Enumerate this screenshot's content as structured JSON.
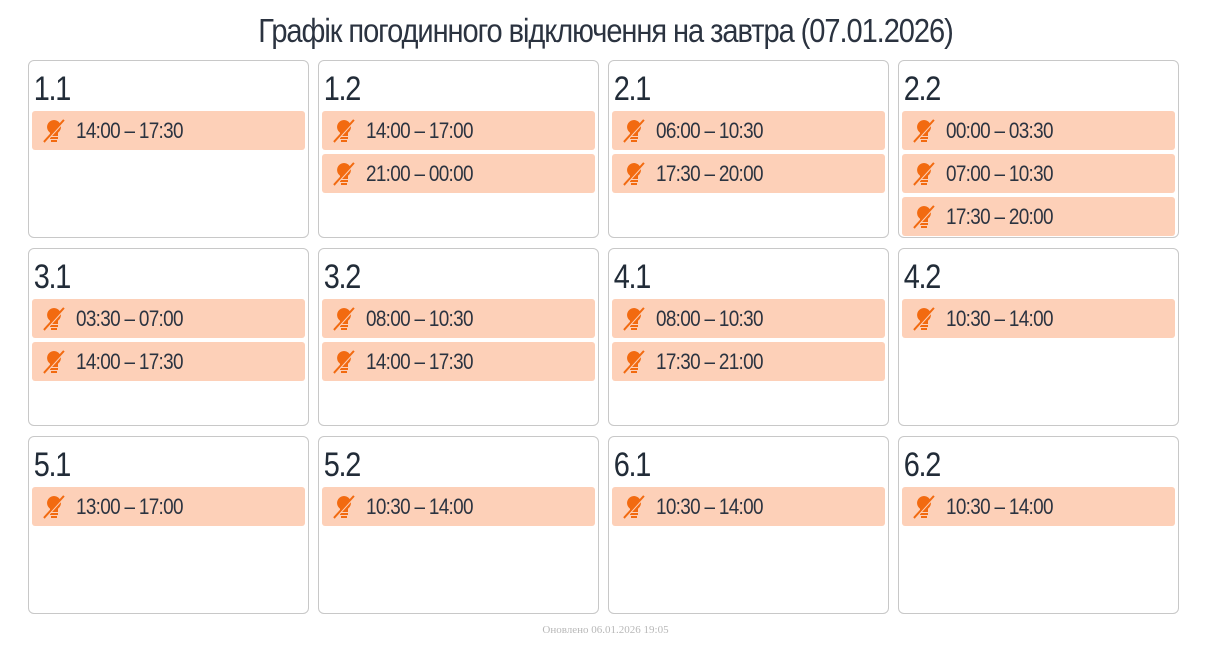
{
  "title": "Графік погодинного відключення на завтра (07.01.2026)",
  "icon": "power-off-bulb-icon",
  "colors": {
    "accent": "#f26a10",
    "item_bg": "#fdd0b8"
  },
  "groups": [
    {
      "label": "1.1",
      "slots": [
        "14:00 – 17:30"
      ]
    },
    {
      "label": "1.2",
      "slots": [
        "14:00 – 17:00",
        "21:00 – 00:00"
      ]
    },
    {
      "label": "2.1",
      "slots": [
        "06:00 – 10:30",
        "17:30 – 20:00"
      ]
    },
    {
      "label": "2.2",
      "slots": [
        "00:00 – 03:30",
        "07:00 – 10:30",
        "17:30 – 20:00"
      ]
    },
    {
      "label": "3.1",
      "slots": [
        "03:30 – 07:00",
        "14:00 – 17:30"
      ]
    },
    {
      "label": "3.2",
      "slots": [
        "08:00 – 10:30",
        "14:00 – 17:30"
      ]
    },
    {
      "label": "4.1",
      "slots": [
        "08:00 – 10:30",
        "17:30 – 21:00"
      ]
    },
    {
      "label": "4.2",
      "slots": [
        "10:30 – 14:00"
      ]
    },
    {
      "label": "5.1",
      "slots": [
        "13:00 – 17:00"
      ]
    },
    {
      "label": "5.2",
      "slots": [
        "10:30 – 14:00"
      ]
    },
    {
      "label": "6.1",
      "slots": [
        "10:30 – 14:00"
      ]
    },
    {
      "label": "6.2",
      "slots": [
        "10:30 – 14:00"
      ]
    }
  ],
  "footer": "Оновлено 06.01.2026 19:05"
}
